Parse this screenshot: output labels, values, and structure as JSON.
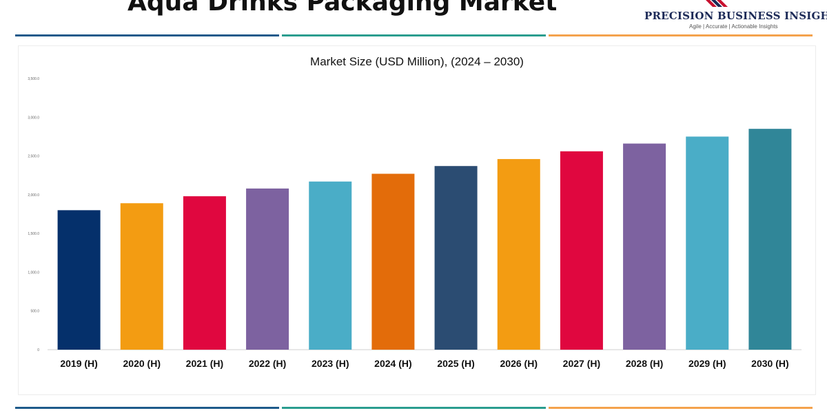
{
  "page": {
    "title": "Aqua Drinks Packaging Market",
    "brand": {
      "name": "PRECISION BUSINESS INSIGHTS",
      "tagline": "Agile | Accurate | Actionable Insights"
    },
    "rule_colors": [
      "#1e5a8a",
      "#2a9d8f",
      "#f4a24c"
    ]
  },
  "chart_data": {
    "type": "bar",
    "title": "Market Size (USD Million), (2024 – 2030)",
    "xlabel": "",
    "ylabel": "",
    "categories": [
      "2019 (H)",
      "2020 (H)",
      "2021 (H)",
      "2022 (H)",
      "2023 (H)",
      "2024 (H)",
      "2025 (H)",
      "2026 (H)",
      "2027 (H)",
      "2028 (H)",
      "2029 (H)",
      "2030 (H)"
    ],
    "values": [
      1800,
      1890,
      1980,
      2080,
      2170,
      2270,
      2370,
      2460,
      2560,
      2660,
      2750,
      2850
    ],
    "colors": [
      "#05306b",
      "#f39c12",
      "#e0073f",
      "#7d62a0",
      "#4aadc7",
      "#e36c0a",
      "#2b4c72",
      "#f39c12",
      "#e0073f",
      "#7d62a0",
      "#4aadc7",
      "#308698"
    ],
    "ylim": [
      0,
      3500
    ],
    "yticks": [
      "0",
      "500.0",
      "1,000.0",
      "1,500.0",
      "2,000.0",
      "2,500.0",
      "3,000.0",
      "3,500.0"
    ],
    "grid": false,
    "legend": false
  }
}
